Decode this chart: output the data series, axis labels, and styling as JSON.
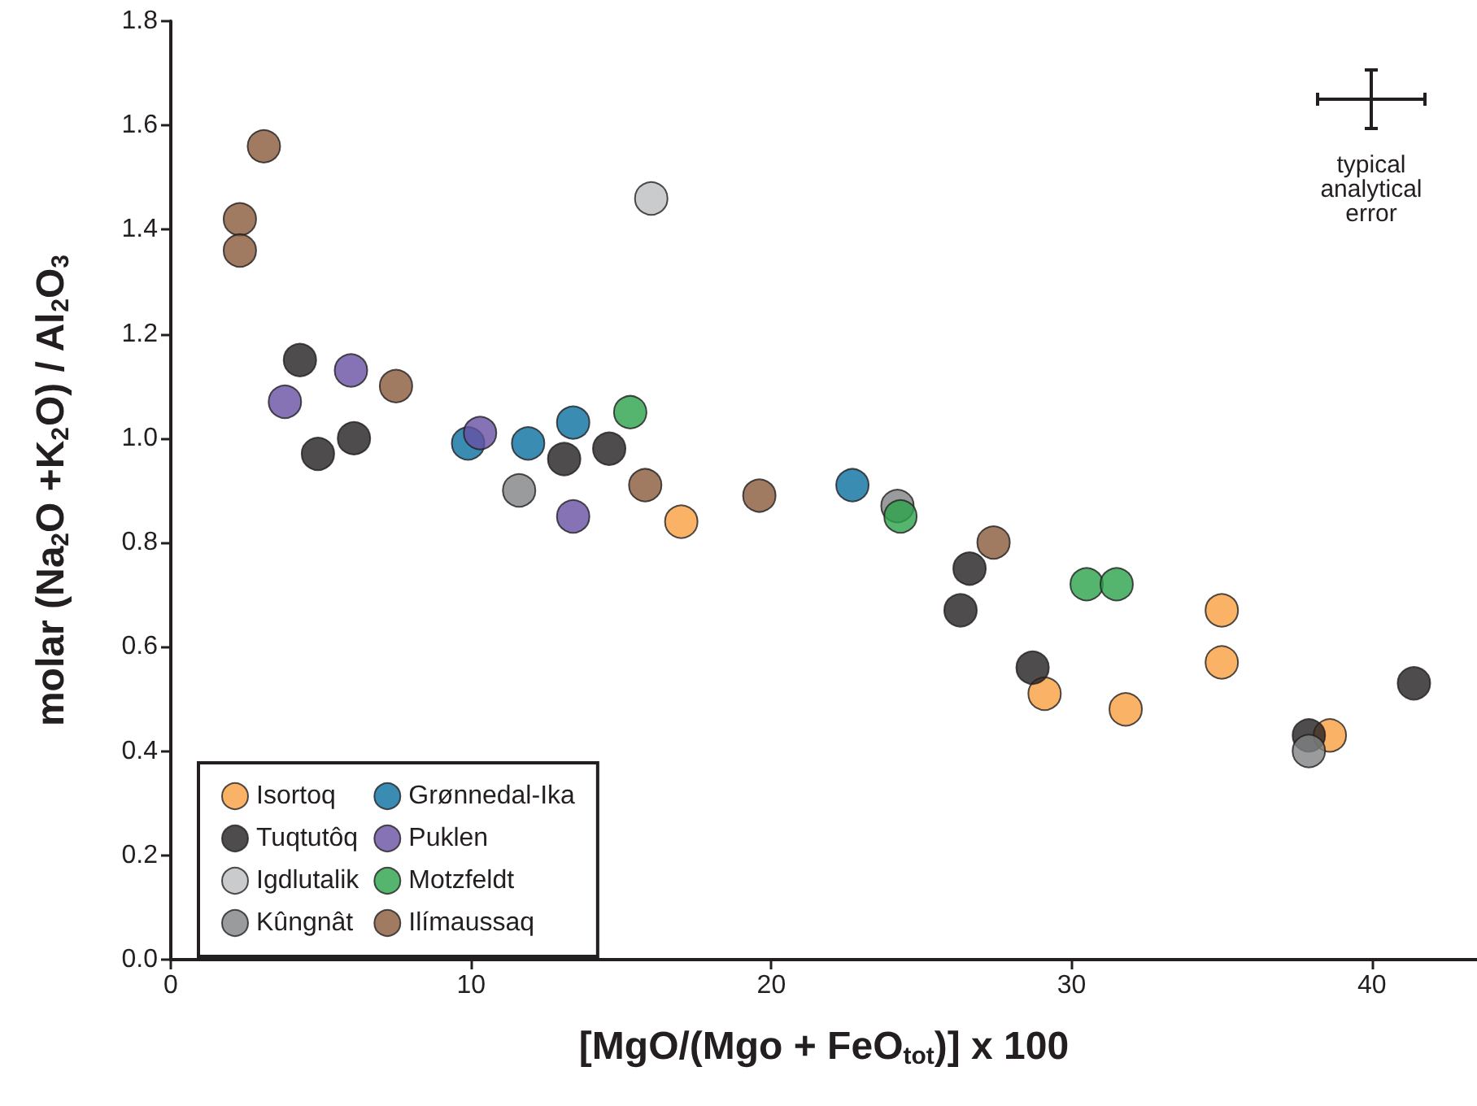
{
  "chart_data": {
    "type": "scatter",
    "xlabel": "[MgO/(Mgo + FeO$_{tot}$)] x 100",
    "ylabel": "molar (Na$_{2}$O +K$_{2}$O) / Al$_{2}$O$_{3}$",
    "xlim": [
      0,
      43.5
    ],
    "xticks": [
      0,
      10,
      20,
      30,
      40
    ],
    "ylim": [
      0,
      1.8
    ],
    "yticks": [
      {
        "value": 0,
        "label": "0.0"
      },
      {
        "value": 0.2,
        "label": "0.2"
      },
      {
        "value": 0.4,
        "label": "0.4"
      },
      {
        "value": 0.6,
        "label": "0.6"
      },
      {
        "value": 0.8,
        "label": "0.8"
      },
      {
        "value": 1,
        "label": "1.0"
      },
      {
        "value": 1.2,
        "label": "1.2"
      },
      {
        "value": 1.4,
        "label": "1.4"
      },
      {
        "value": 1.6,
        "label": "1.6"
      },
      {
        "value": 1.8,
        "label": "1.8"
      }
    ],
    "marker": "circle",
    "grid": false,
    "legend": "bottom left",
    "annotations": [
      "typical analytical error"
    ],
    "series": [
      {
        "name": "Isortoq",
        "color": "#f9a040",
        "x": [
          17.0,
          29.1,
          31.8,
          35.0,
          35.0,
          38.6
        ],
        "values": [
          0.84,
          0.51,
          0.48,
          0.67,
          0.57,
          0.43
        ]
      },
      {
        "name": "Tuqtutôq",
        "color": "#231f20",
        "x": [
          4.3,
          4.9,
          6.1,
          13.1,
          14.6,
          26.6,
          26.3,
          28.7,
          37.9,
          41.4
        ],
        "values": [
          1.15,
          0.97,
          1.0,
          0.96,
          0.98,
          0.75,
          0.67,
          0.56,
          0.43,
          0.53
        ]
      },
      {
        "name": "Igdlutalik",
        "color": "#bcbec0",
        "x": [
          16.0
        ],
        "values": [
          1.46
        ]
      },
      {
        "name": "Kûngnât",
        "color": "#7f8283",
        "x": [
          11.6,
          24.2,
          37.9
        ],
        "values": [
          0.9,
          0.87,
          0.4
        ]
      },
      {
        "name": "Grønnedal-Ika",
        "color": "#0a6fa0",
        "x": [
          9.9,
          11.9,
          13.4,
          22.7
        ],
        "values": [
          0.99,
          0.99,
          1.03,
          0.91
        ]
      },
      {
        "name": "Puklen",
        "color": "#6750a4",
        "x": [
          3.8,
          6.0,
          10.3,
          13.4
        ],
        "values": [
          1.07,
          1.13,
          1.01,
          0.85
        ]
      },
      {
        "name": "Motzfeldt",
        "color": "#2aa24a",
        "x": [
          15.3,
          24.3,
          30.5,
          31.5
        ],
        "values": [
          1.05,
          0.85,
          0.72,
          0.72
        ]
      },
      {
        "name": "Ilímaussaq",
        "color": "#8a5a3a",
        "x": [
          3.1,
          2.3,
          2.3,
          7.5,
          15.8,
          19.6,
          27.4
        ],
        "values": [
          1.56,
          1.42,
          1.36,
          1.1,
          0.91,
          0.89,
          0.8
        ]
      }
    ]
  }
}
